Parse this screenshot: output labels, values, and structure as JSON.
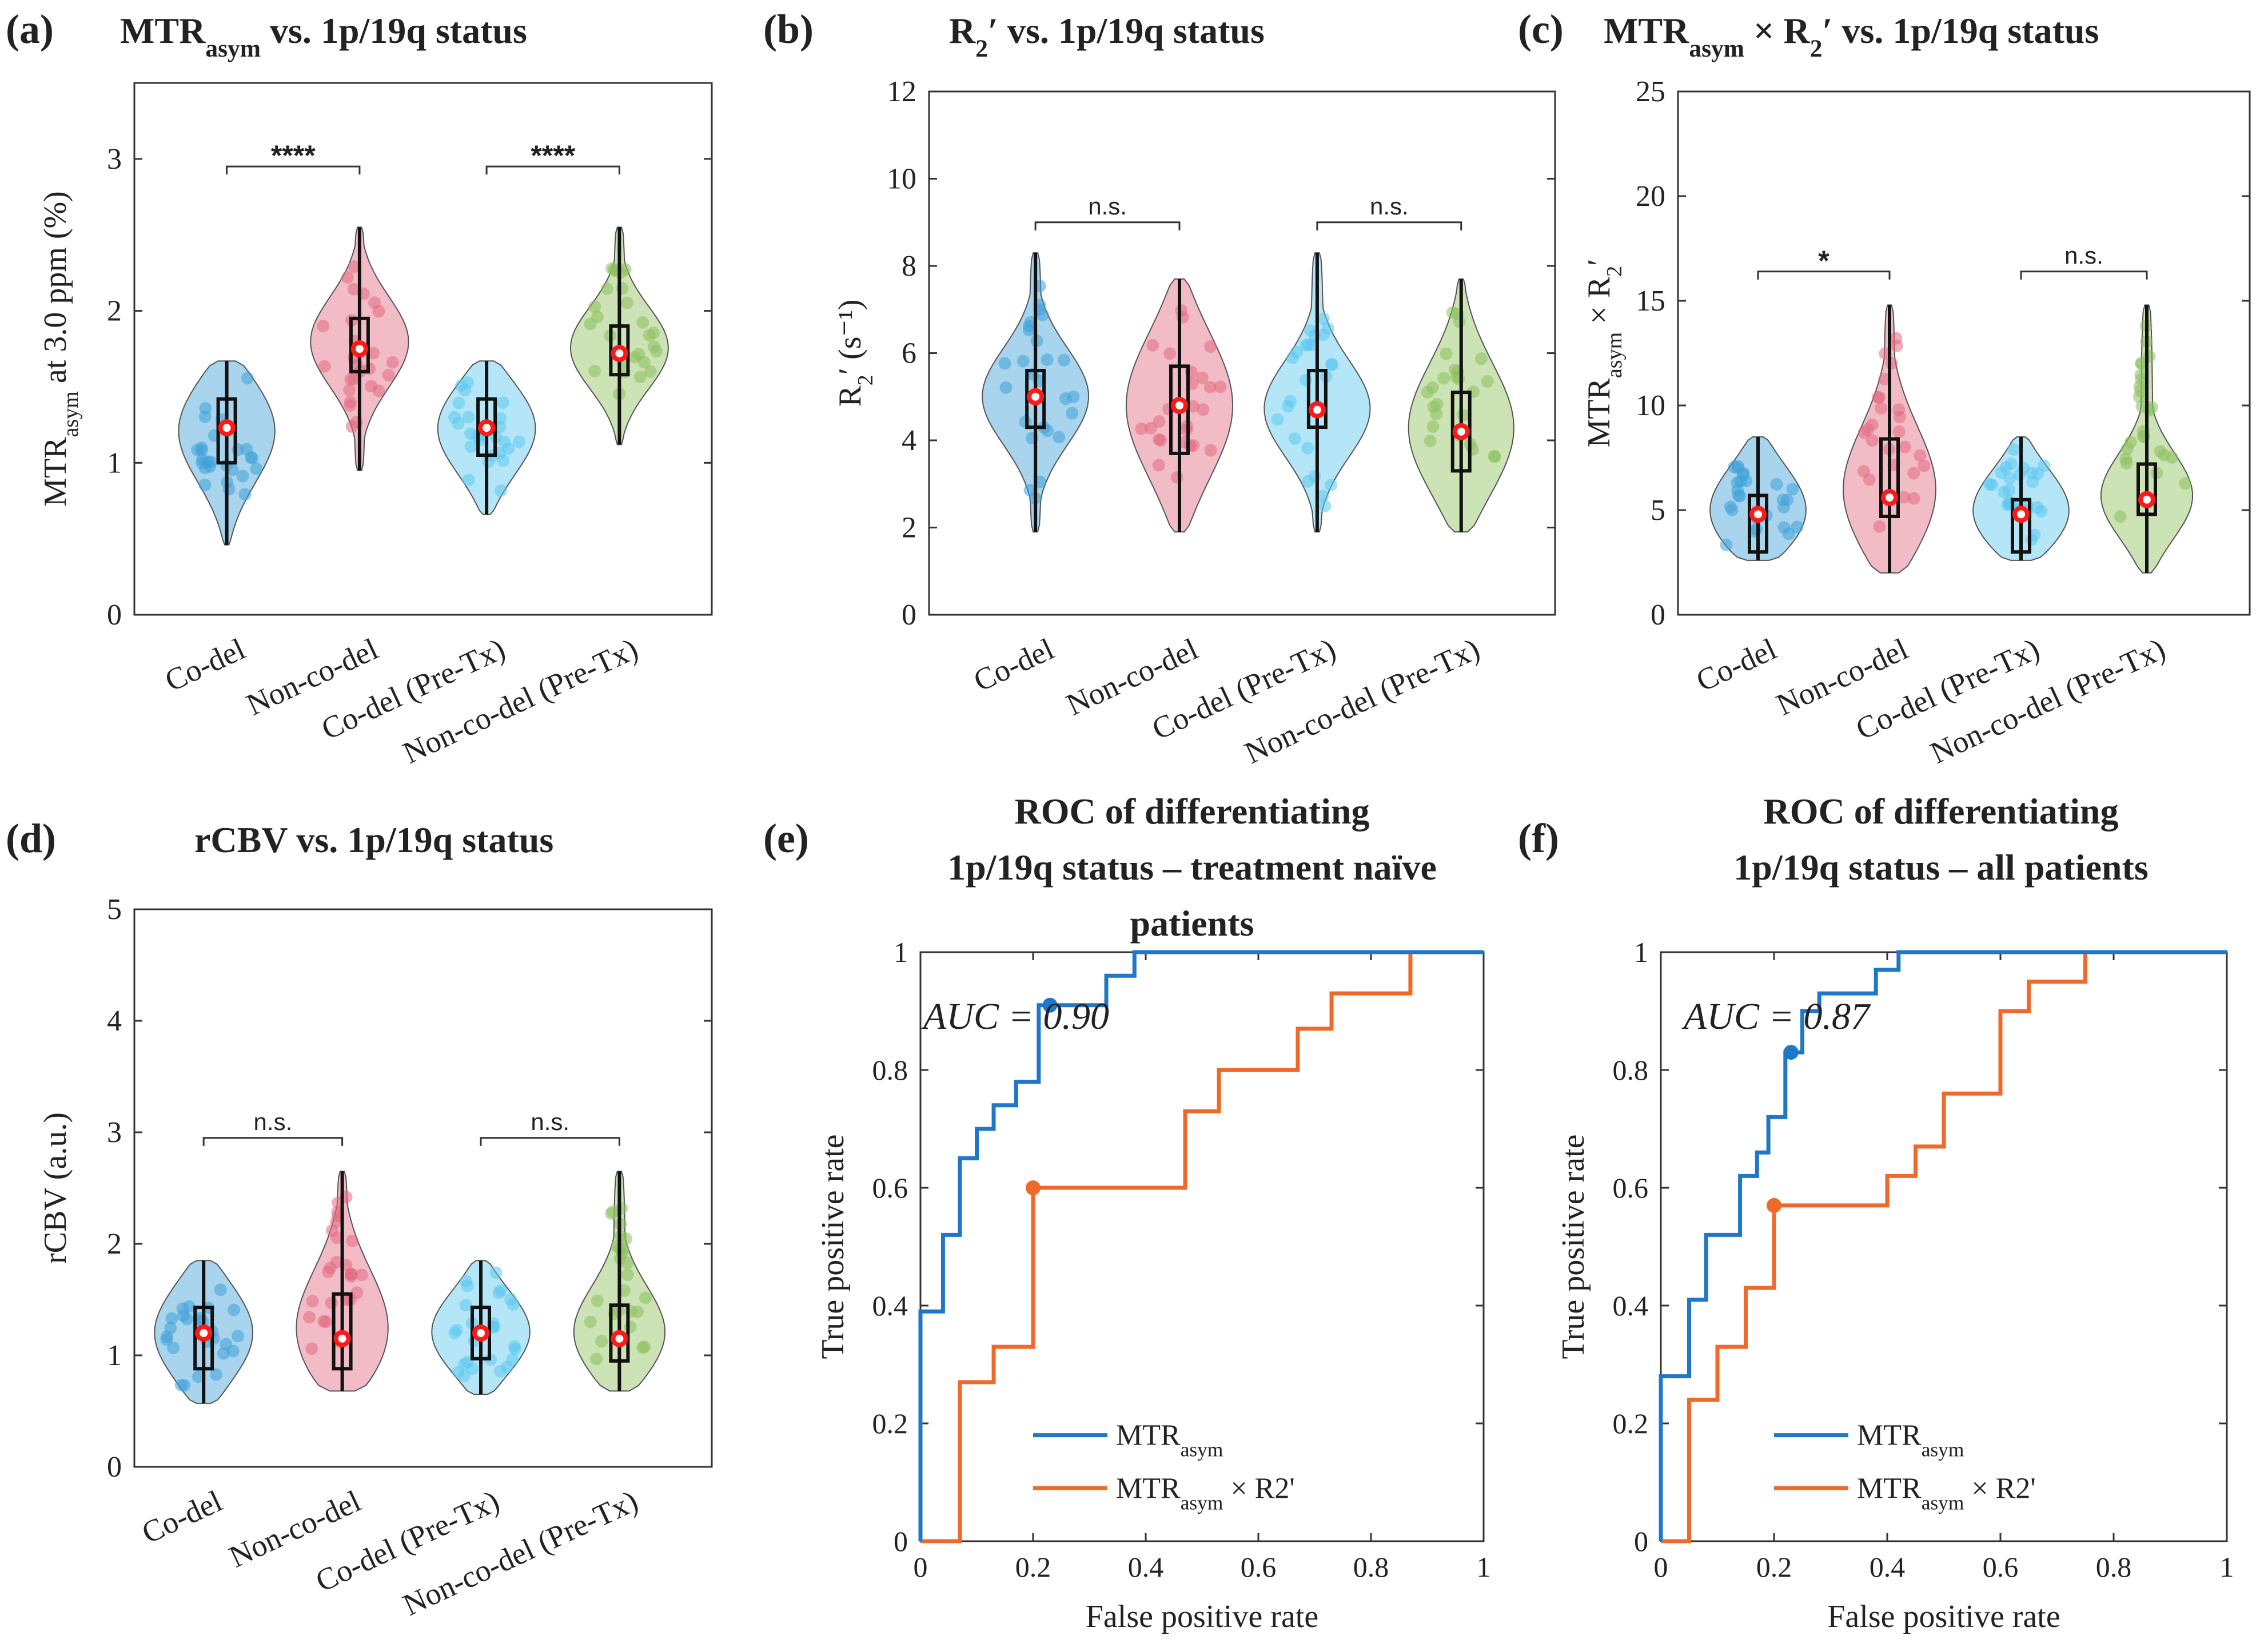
{
  "chart_data": [
    {
      "type": "violin",
      "panel_label": "(a)",
      "title_parts": [
        "MTR",
        "asym",
        " vs. 1p/19q status"
      ],
      "ylabel_parts": [
        "MTR",
        "asym",
        " at 3.0 ppm (%)"
      ],
      "ylim": [
        0,
        3.5
      ],
      "yticks": [
        "0",
        "1",
        "2",
        "3"
      ],
      "categories": [
        "Co-del",
        "Non-co-del",
        "Co-del (Pre-Tx)",
        "Non-co-del (Pre-Tx)"
      ],
      "series_colors": [
        "#3fa0d8",
        "#e26a80",
        "#5bc8ef",
        "#8dc05d"
      ],
      "violins": [
        {
          "min": 0.46,
          "q1": 1.0,
          "median": 1.24,
          "q3": 1.42,
          "max": 1.67,
          "mean": 1.23
        },
        {
          "min": 0.95,
          "q1": 1.6,
          "median": 1.8,
          "q3": 1.95,
          "max": 2.55,
          "mean": 1.75
        },
        {
          "min": 0.66,
          "q1": 1.05,
          "median": 1.24,
          "q3": 1.42,
          "max": 1.67,
          "mean": 1.23
        },
        {
          "min": 1.12,
          "q1": 1.58,
          "median": 1.75,
          "q3": 1.9,
          "max": 2.55,
          "mean": 1.72
        }
      ],
      "significance": [
        {
          "pair": [
            0,
            1
          ],
          "label": "****",
          "y": 2.95
        },
        {
          "pair": [
            2,
            3
          ],
          "label": "****",
          "y": 2.95
        }
      ]
    },
    {
      "type": "violin",
      "panel_label": "(b)",
      "title_parts": [
        "R",
        "2",
        "′ vs. 1p/19q status"
      ],
      "ylabel": "R2' (s⁻¹)",
      "ylim": [
        0,
        12
      ],
      "yticks": [
        "0",
        "2",
        "4",
        "6",
        "8",
        "10",
        "12"
      ],
      "categories": [
        "Co-del",
        "Non-co-del",
        "Co-del (Pre-Tx)",
        "Non-co-del (Pre-Tx)"
      ],
      "series_colors": [
        "#3fa0d8",
        "#e26a80",
        "#5bc8ef",
        "#8dc05d"
      ],
      "violins": [
        {
          "min": 1.9,
          "q1": 4.3,
          "median": 5.0,
          "q3": 5.6,
          "max": 8.3,
          "mean": 5.0
        },
        {
          "min": 1.9,
          "q1": 3.7,
          "median": 4.8,
          "q3": 5.7,
          "max": 7.7,
          "mean": 4.8
        },
        {
          "min": 1.9,
          "q1": 4.3,
          "median": 4.7,
          "q3": 5.6,
          "max": 8.3,
          "mean": 4.7
        },
        {
          "min": 1.9,
          "q1": 3.3,
          "median": 4.2,
          "q3": 5.1,
          "max": 7.7,
          "mean": 4.2
        }
      ],
      "significance": [
        {
          "pair": [
            0,
            1
          ],
          "label": "n.s.",
          "y": 9.0
        },
        {
          "pair": [
            2,
            3
          ],
          "label": "n.s.",
          "y": 9.0
        }
      ]
    },
    {
      "type": "violin",
      "panel_label": "(c)",
      "title_parts": [
        "MTR",
        "asym",
        " × R",
        "2",
        "′ vs. 1p/19q status"
      ],
      "ylabel": "MTRasym × R2'",
      "ylim": [
        0,
        25
      ],
      "yticks": [
        "0",
        "5",
        "10",
        "15",
        "20",
        "25"
      ],
      "categories": [
        "Co-del",
        "Non-co-del",
        "Co-del (Pre-Tx)",
        "Non-co-del (Pre-Tx)"
      ],
      "series_colors": [
        "#3fa0d8",
        "#e26a80",
        "#5bc8ef",
        "#8dc05d"
      ],
      "violins": [
        {
          "min": 2.6,
          "q1": 3.0,
          "median": 4.8,
          "q3": 5.7,
          "max": 8.5,
          "mean": 4.8
        },
        {
          "min": 2.0,
          "q1": 4.7,
          "median": 5.6,
          "q3": 8.4,
          "max": 14.8,
          "mean": 5.6
        },
        {
          "min": 2.6,
          "q1": 3.0,
          "median": 4.8,
          "q3": 5.5,
          "max": 8.5,
          "mean": 4.8
        },
        {
          "min": 2.0,
          "q1": 4.8,
          "median": 5.5,
          "q3": 7.2,
          "max": 14.8,
          "mean": 5.5
        }
      ],
      "significance": [
        {
          "pair": [
            0,
            1
          ],
          "label": "*",
          "y": 16.4
        },
        {
          "pair": [
            2,
            3
          ],
          "label": "n.s.",
          "y": 16.4
        }
      ]
    },
    {
      "type": "violin",
      "panel_label": "(d)",
      "title": "rCBV vs. 1p/19q status",
      "ylabel": "rCBV (a.u.)",
      "ylim": [
        0,
        5
      ],
      "yticks": [
        "0",
        "1",
        "2",
        "3",
        "4",
        "5"
      ],
      "categories": [
        "Co-del",
        "Non-co-del",
        "Co-del (Pre-Tx)",
        "Non-co-del (Pre-Tx)"
      ],
      "series_colors": [
        "#3fa0d8",
        "#e26a80",
        "#5bc8ef",
        "#8dc05d"
      ],
      "violins": [
        {
          "min": 0.57,
          "q1": 0.88,
          "median": 1.2,
          "q3": 1.43,
          "max": 1.85,
          "mean": 1.2
        },
        {
          "min": 0.68,
          "q1": 0.88,
          "median": 1.15,
          "q3": 1.55,
          "max": 2.65,
          "mean": 1.15
        },
        {
          "min": 0.65,
          "q1": 0.97,
          "median": 1.2,
          "q3": 1.43,
          "max": 1.85,
          "mean": 1.2
        },
        {
          "min": 0.68,
          "q1": 0.95,
          "median": 1.15,
          "q3": 1.45,
          "max": 2.65,
          "mean": 1.15
        }
      ],
      "significance": [
        {
          "pair": [
            0,
            1
          ],
          "label": "n.s.",
          "y": 2.95
        },
        {
          "pair": [
            2,
            3
          ],
          "label": "n.s.",
          "y": 2.95
        }
      ]
    },
    {
      "type": "line",
      "panel_label": "(e)",
      "title_lines": [
        "ROC of differentiating",
        "1p/19q status – treatment naïve",
        "patients"
      ],
      "xlabel": "False positive rate",
      "ylabel": "True positive rate",
      "xlim": [
        0,
        1
      ],
      "ylim": [
        0,
        1
      ],
      "ticks": [
        "0",
        "0.2",
        "0.4",
        "0.6",
        "0.8",
        "1"
      ],
      "auc_label": "AUC = 0.90",
      "series": [
        {
          "name": "MTR",
          "sub": "asym",
          "color": "#1f77c8",
          "points": [
            [
              0,
              0
            ],
            [
              0,
              0.39
            ],
            [
              0.04,
              0.39
            ],
            [
              0.04,
              0.52
            ],
            [
              0.07,
              0.52
            ],
            [
              0.07,
              0.65
            ],
            [
              0.1,
              0.65
            ],
            [
              0.1,
              0.7
            ],
            [
              0.13,
              0.7
            ],
            [
              0.13,
              0.74
            ],
            [
              0.17,
              0.74
            ],
            [
              0.17,
              0.78
            ],
            [
              0.21,
              0.78
            ],
            [
              0.21,
              0.91
            ],
            [
              0.33,
              0.91
            ],
            [
              0.33,
              0.96
            ],
            [
              0.38,
              0.96
            ],
            [
              0.38,
              1
            ],
            [
              1,
              1
            ]
          ],
          "marker": [
            0.23,
            0.91
          ]
        },
        {
          "name": "MTR",
          "sub": "asym",
          "suffix": " × R2'",
          "color": "#ef6a2a",
          "points": [
            [
              0,
              0
            ],
            [
              0.07,
              0
            ],
            [
              0.07,
              0.27
            ],
            [
              0.13,
              0.27
            ],
            [
              0.13,
              0.33
            ],
            [
              0.2,
              0.33
            ],
            [
              0.2,
              0.6
            ],
            [
              0.47,
              0.6
            ],
            [
              0.47,
              0.73
            ],
            [
              0.53,
              0.73
            ],
            [
              0.53,
              0.8
            ],
            [
              0.67,
              0.8
            ],
            [
              0.67,
              0.87
            ],
            [
              0.73,
              0.87
            ],
            [
              0.73,
              0.93
            ],
            [
              0.87,
              0.93
            ],
            [
              0.87,
              1
            ],
            [
              1,
              1
            ]
          ],
          "marker": [
            0.2,
            0.6
          ]
        }
      ]
    },
    {
      "type": "line",
      "panel_label": "(f)",
      "title_lines": [
        "ROC of differentiating",
        "1p/19q status – all patients"
      ],
      "xlabel": "False positive rate",
      "ylabel": "True positive rate",
      "xlim": [
        0,
        1
      ],
      "ylim": [
        0,
        1
      ],
      "ticks": [
        "0",
        "0.2",
        "0.4",
        "0.6",
        "0.8",
        "1"
      ],
      "auc_label": "AUC = 0.87",
      "series": [
        {
          "name": "MTR",
          "sub": "asym",
          "color": "#1f77c8",
          "points": [
            [
              0,
              0
            ],
            [
              0,
              0.28
            ],
            [
              0.05,
              0.28
            ],
            [
              0.05,
              0.41
            ],
            [
              0.08,
              0.41
            ],
            [
              0.08,
              0.52
            ],
            [
              0.14,
              0.52
            ],
            [
              0.14,
              0.62
            ],
            [
              0.17,
              0.62
            ],
            [
              0.17,
              0.66
            ],
            [
              0.19,
              0.66
            ],
            [
              0.19,
              0.72
            ],
            [
              0.22,
              0.72
            ],
            [
              0.22,
              0.83
            ],
            [
              0.25,
              0.83
            ],
            [
              0.25,
              0.9
            ],
            [
              0.28,
              0.9
            ],
            [
              0.28,
              0.93
            ],
            [
              0.38,
              0.93
            ],
            [
              0.38,
              0.97
            ],
            [
              0.42,
              0.97
            ],
            [
              0.42,
              1
            ],
            [
              1,
              1
            ]
          ],
          "marker": [
            0.23,
            0.83
          ]
        },
        {
          "name": "MTR",
          "sub": "asym",
          "suffix": " × R2'",
          "color": "#ef6a2a",
          "points": [
            [
              0,
              0
            ],
            [
              0.05,
              0
            ],
            [
              0.05,
              0.24
            ],
            [
              0.1,
              0.24
            ],
            [
              0.1,
              0.33
            ],
            [
              0.15,
              0.33
            ],
            [
              0.15,
              0.43
            ],
            [
              0.2,
              0.43
            ],
            [
              0.2,
              0.57
            ],
            [
              0.4,
              0.57
            ],
            [
              0.4,
              0.62
            ],
            [
              0.45,
              0.62
            ],
            [
              0.45,
              0.67
            ],
            [
              0.5,
              0.67
            ],
            [
              0.5,
              0.76
            ],
            [
              0.6,
              0.76
            ],
            [
              0.6,
              0.9
            ],
            [
              0.65,
              0.9
            ],
            [
              0.65,
              0.95
            ],
            [
              0.75,
              0.95
            ],
            [
              0.75,
              1
            ],
            [
              1,
              1
            ]
          ],
          "marker": [
            0.2,
            0.57
          ]
        }
      ]
    }
  ]
}
